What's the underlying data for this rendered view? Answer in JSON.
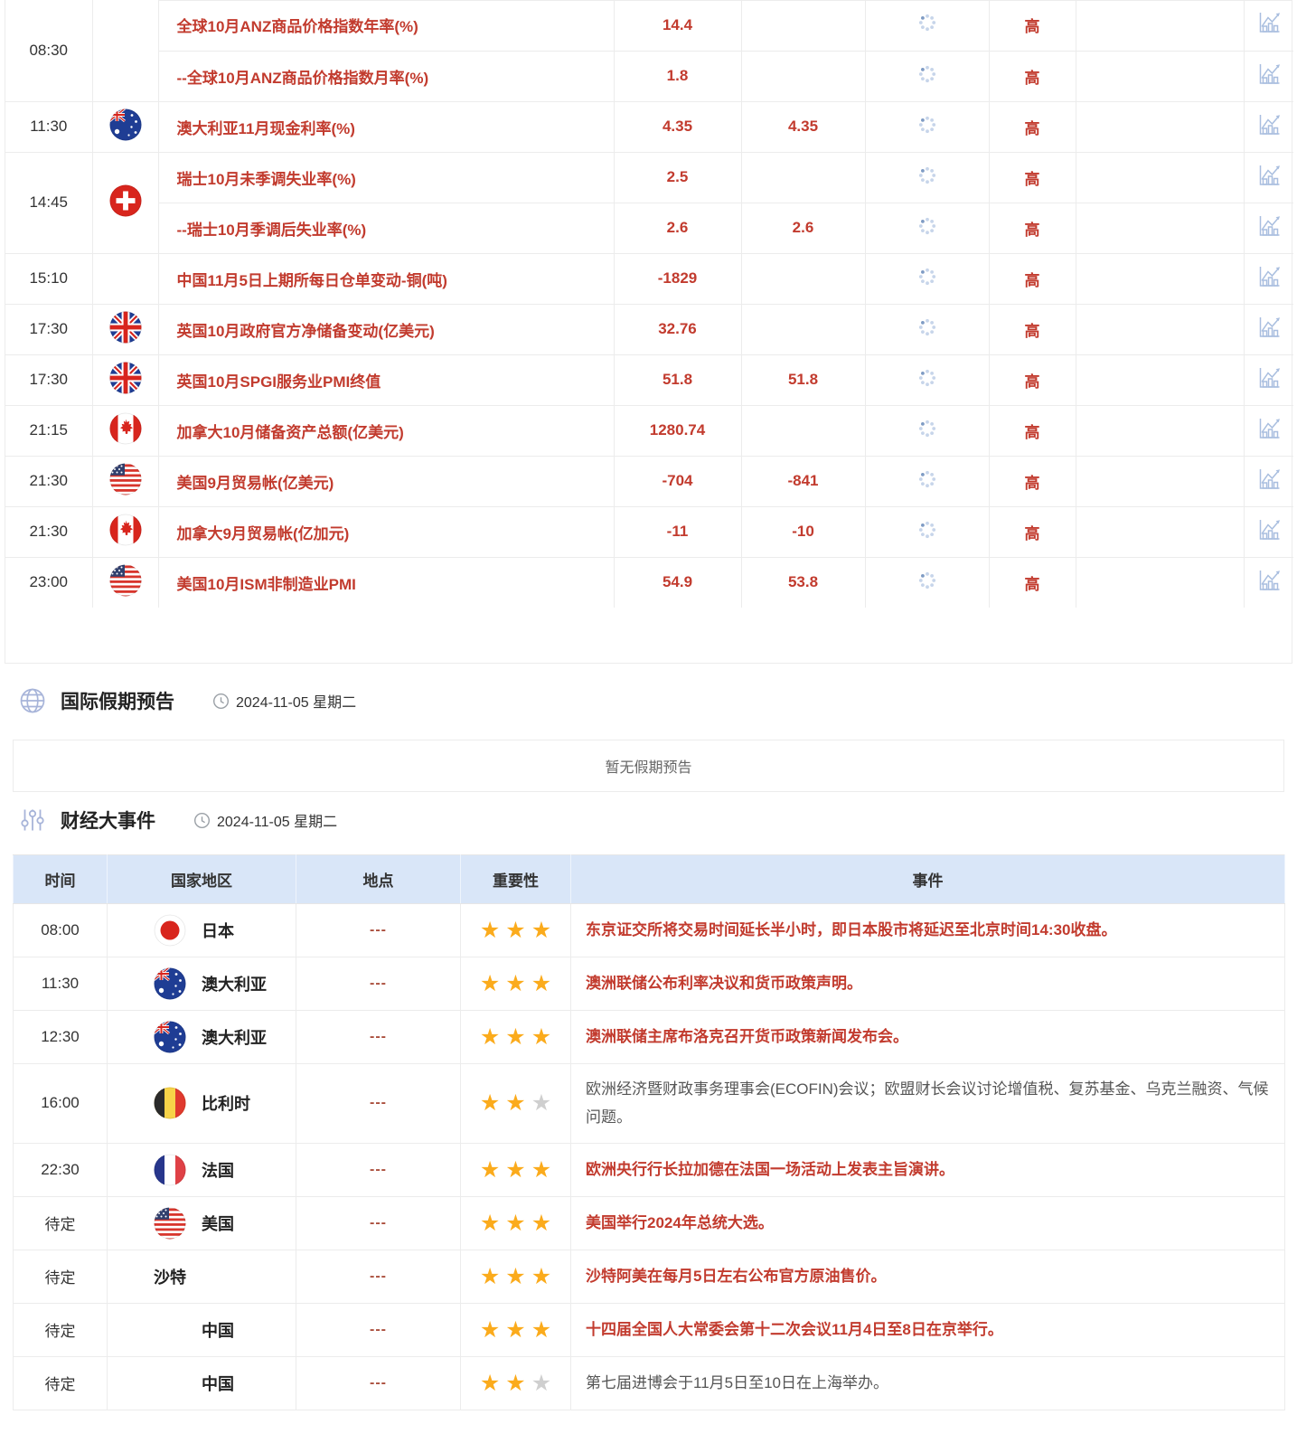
{
  "economic_calendar": {
    "rows": [
      {
        "time": "08:30",
        "flag": null,
        "group_size": 2,
        "indicator": "全球10月ANZ商品价格指数年率(%)",
        "actual": "14.4",
        "forecast": "",
        "importance": "高"
      },
      {
        "in_group": true,
        "indicator": "--全球10月ANZ商品价格指数月率(%)",
        "actual": "1.8",
        "forecast": "",
        "importance": "高"
      },
      {
        "time": "11:30",
        "flag": "australia",
        "group_size": 1,
        "indicator": "澳大利亚11月现金利率(%)",
        "actual": "4.35",
        "forecast": "4.35",
        "importance": "高"
      },
      {
        "time": "14:45",
        "flag": "switzerland",
        "group_size": 2,
        "indicator": "瑞士10月未季调失业率(%)",
        "actual": "2.5",
        "forecast": "",
        "importance": "高"
      },
      {
        "in_group": true,
        "indicator": "--瑞士10月季调后失业率(%)",
        "actual": "2.6",
        "forecast": "2.6",
        "importance": "高"
      },
      {
        "time": "15:10",
        "flag": null,
        "group_size": 1,
        "indicator": "中国11月5日上期所每日仓单变动-铜(吨)",
        "actual": "-1829",
        "forecast": "",
        "importance": "高"
      },
      {
        "time": "17:30",
        "flag": "uk",
        "group_size": 1,
        "indicator": "英国10月政府官方净储备变动(亿美元)",
        "actual": "32.76",
        "forecast": "",
        "importance": "高"
      },
      {
        "time": "17:30",
        "flag": "uk",
        "group_size": 1,
        "indicator": "英国10月SPGI服务业PMI终值",
        "actual": "51.8",
        "forecast": "51.8",
        "importance": "高"
      },
      {
        "time": "21:15",
        "flag": "canada",
        "group_size": 1,
        "indicator": "加拿大10月储备资产总额(亿美元)",
        "actual": "1280.74",
        "forecast": "",
        "importance": "高"
      },
      {
        "time": "21:30",
        "flag": "usa",
        "group_size": 1,
        "indicator": "美国9月贸易帐(亿美元)",
        "actual": "-704",
        "forecast": "-841",
        "importance": "高"
      },
      {
        "time": "21:30",
        "flag": "canada",
        "group_size": 1,
        "indicator": "加拿大9月贸易帐(亿加元)",
        "actual": "-11",
        "forecast": "-10",
        "importance": "高"
      },
      {
        "time": "23:00",
        "flag": "usa",
        "group_size": 1,
        "indicator": "美国10月ISM非制造业PMI",
        "actual": "54.9",
        "forecast": "53.8",
        "importance": "高"
      }
    ]
  },
  "holiday_section": {
    "title": "国际假期预告",
    "date": "2024-11-05 星期二",
    "empty_message": "暂无假期预告"
  },
  "events_section": {
    "title": "财经大事件",
    "date": "2024-11-05 星期二",
    "table": {
      "headers": [
        "时间",
        "国家地区",
        "地点",
        "重要性",
        "事件"
      ],
      "max_stars": 3,
      "rows": [
        {
          "time": "08:00",
          "country": "日本",
          "flag": "japan",
          "flag_placeholder": false,
          "location": "---",
          "stars": 3,
          "event": "东京证交所将交易时间延长半小时，即日本股市将延迟至北京时间14:30收盘。",
          "highlight": true
        },
        {
          "time": "11:30",
          "country": "澳大利亚",
          "flag": "australia",
          "flag_placeholder": false,
          "location": "---",
          "stars": 3,
          "event": "澳洲联储公布利率决议和货币政策声明。",
          "highlight": true
        },
        {
          "time": "12:30",
          "country": "澳大利亚",
          "flag": "australia",
          "flag_placeholder": false,
          "location": "---",
          "stars": 3,
          "event": "澳洲联储主席布洛克召开货币政策新闻发布会。",
          "highlight": true
        },
        {
          "time": "16:00",
          "country": "比利时",
          "flag": "belgium",
          "flag_placeholder": false,
          "location": "---",
          "stars": 2,
          "event": "欧洲经济暨财政事务理事会(ECOFIN)会议；欧盟财长会议讨论增值税、复苏基金、乌克兰融资、气候问题。",
          "highlight": false
        },
        {
          "time": "22:30",
          "country": "法国",
          "flag": "france",
          "flag_placeholder": false,
          "location": "---",
          "stars": 3,
          "event": "欧洲央行行长拉加德在法国一场活动上发表主旨演讲。",
          "highlight": true
        },
        {
          "time": "待定",
          "country": "美国",
          "flag": "usa",
          "flag_placeholder": false,
          "location": "---",
          "stars": 3,
          "event": "美国举行2024年总统大选。",
          "highlight": true
        },
        {
          "time": "待定",
          "country": "沙特",
          "flag": null,
          "flag_placeholder": false,
          "location": "---",
          "stars": 3,
          "event": "沙特阿美在每月5日左右公布官方原油售价。",
          "highlight": true
        },
        {
          "time": "待定",
          "country": "中国",
          "flag": null,
          "flag_placeholder": true,
          "location": "---",
          "stars": 3,
          "event": "十四届全国人大常委会第十二次会议11月4日至8日在京举行。",
          "highlight": true
        },
        {
          "time": "待定",
          "country": "中国",
          "flag": null,
          "flag_placeholder": true,
          "location": "---",
          "stars": 2,
          "event": "第七届进博会于11月5日至10日在上海举办。",
          "highlight": false
        }
      ]
    }
  },
  "colors": {
    "accent_red": "#c23b2e",
    "table_header_bg": "#d9e6f8",
    "star_gold": "#fbab1c",
    "star_gray": "#cfcfcf",
    "icon_blue": "#a9bedf"
  }
}
